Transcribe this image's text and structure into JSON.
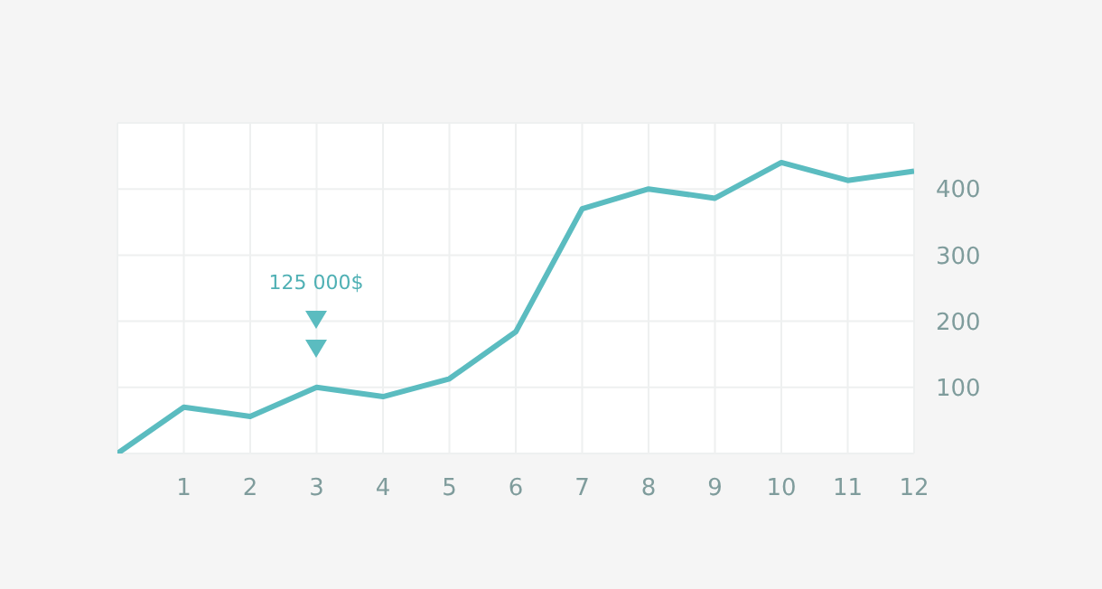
{
  "chart_data": {
    "type": "line",
    "x": [
      0,
      1,
      2,
      3,
      4,
      5,
      6,
      7,
      8,
      9,
      10,
      11,
      12
    ],
    "series": [
      {
        "color": "#5bbcc0",
        "values": [
          0,
          70,
          56,
          100,
          86,
          113,
          184,
          370,
          400,
          386,
          440,
          413,
          427
        ]
      }
    ],
    "xlim": [
      0,
      12
    ],
    "xticks": [
      1,
      2,
      3,
      4,
      5,
      6,
      7,
      8,
      9,
      10,
      11,
      12
    ],
    "ylim": [
      0,
      500
    ],
    "yticks": [
      100,
      200,
      300,
      400
    ],
    "grid": true,
    "marker": "none",
    "line_style": "solid",
    "annotations": [
      "125 000$"
    ]
  }
}
